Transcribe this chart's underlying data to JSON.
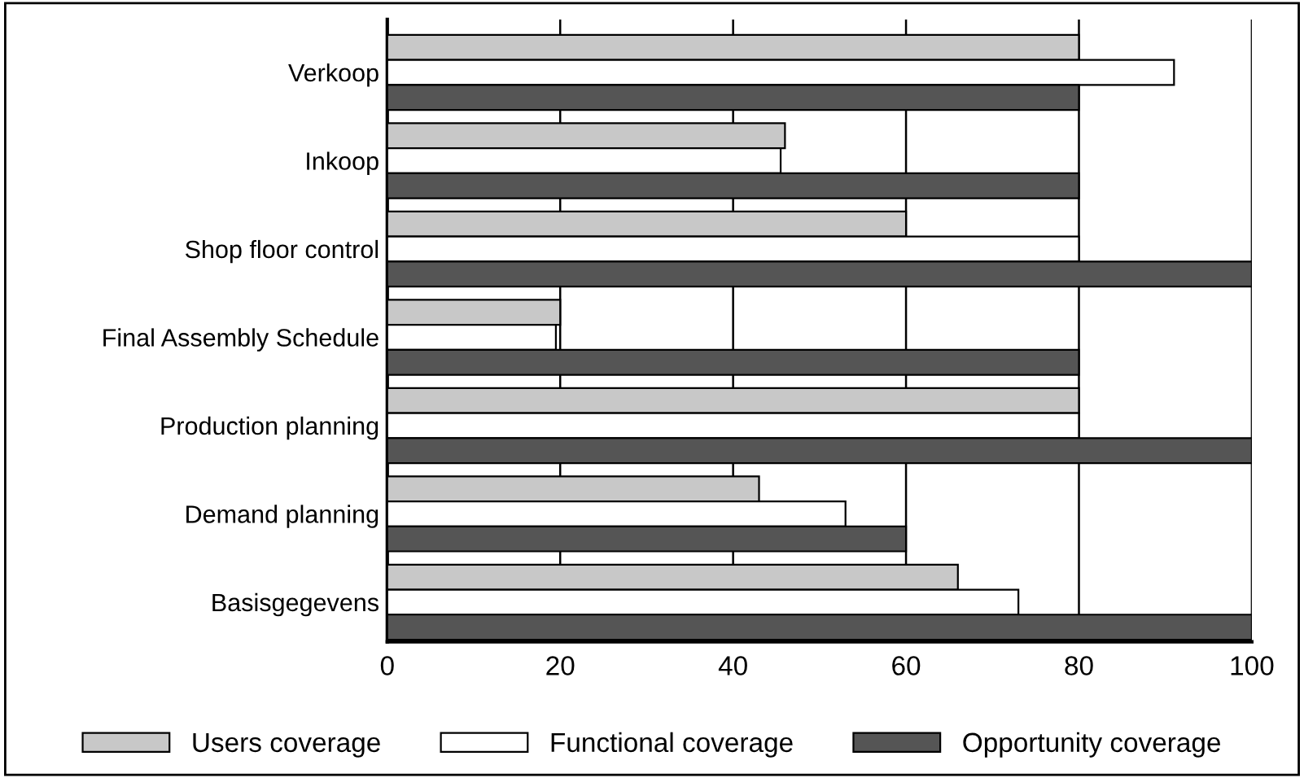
{
  "chart_data": {
    "type": "bar",
    "orientation": "horizontal",
    "categories": [
      "Verkoop",
      "Inkoop",
      "Shop floor control",
      "Final Assembly Schedule",
      "Production planning",
      "Demand planning",
      "Basisgegevens"
    ],
    "series": [
      {
        "name": "Users coverage",
        "color": "#c8c8c8",
        "values": [
          80,
          46,
          60,
          20,
          80,
          43,
          66
        ]
      },
      {
        "name": "Functional coverage",
        "color": "#ffffff",
        "values": [
          91,
          45.5,
          80,
          19.5,
          80,
          53,
          73
        ]
      },
      {
        "name": "Opportunity coverage",
        "color": "#555555",
        "values": [
          80,
          80,
          100,
          80,
          100,
          60,
          100
        ]
      }
    ],
    "xlim": [
      0,
      100
    ],
    "xticks": [
      0,
      20,
      40,
      60,
      80,
      100
    ],
    "grid": "x",
    "legend": "bottom"
  }
}
